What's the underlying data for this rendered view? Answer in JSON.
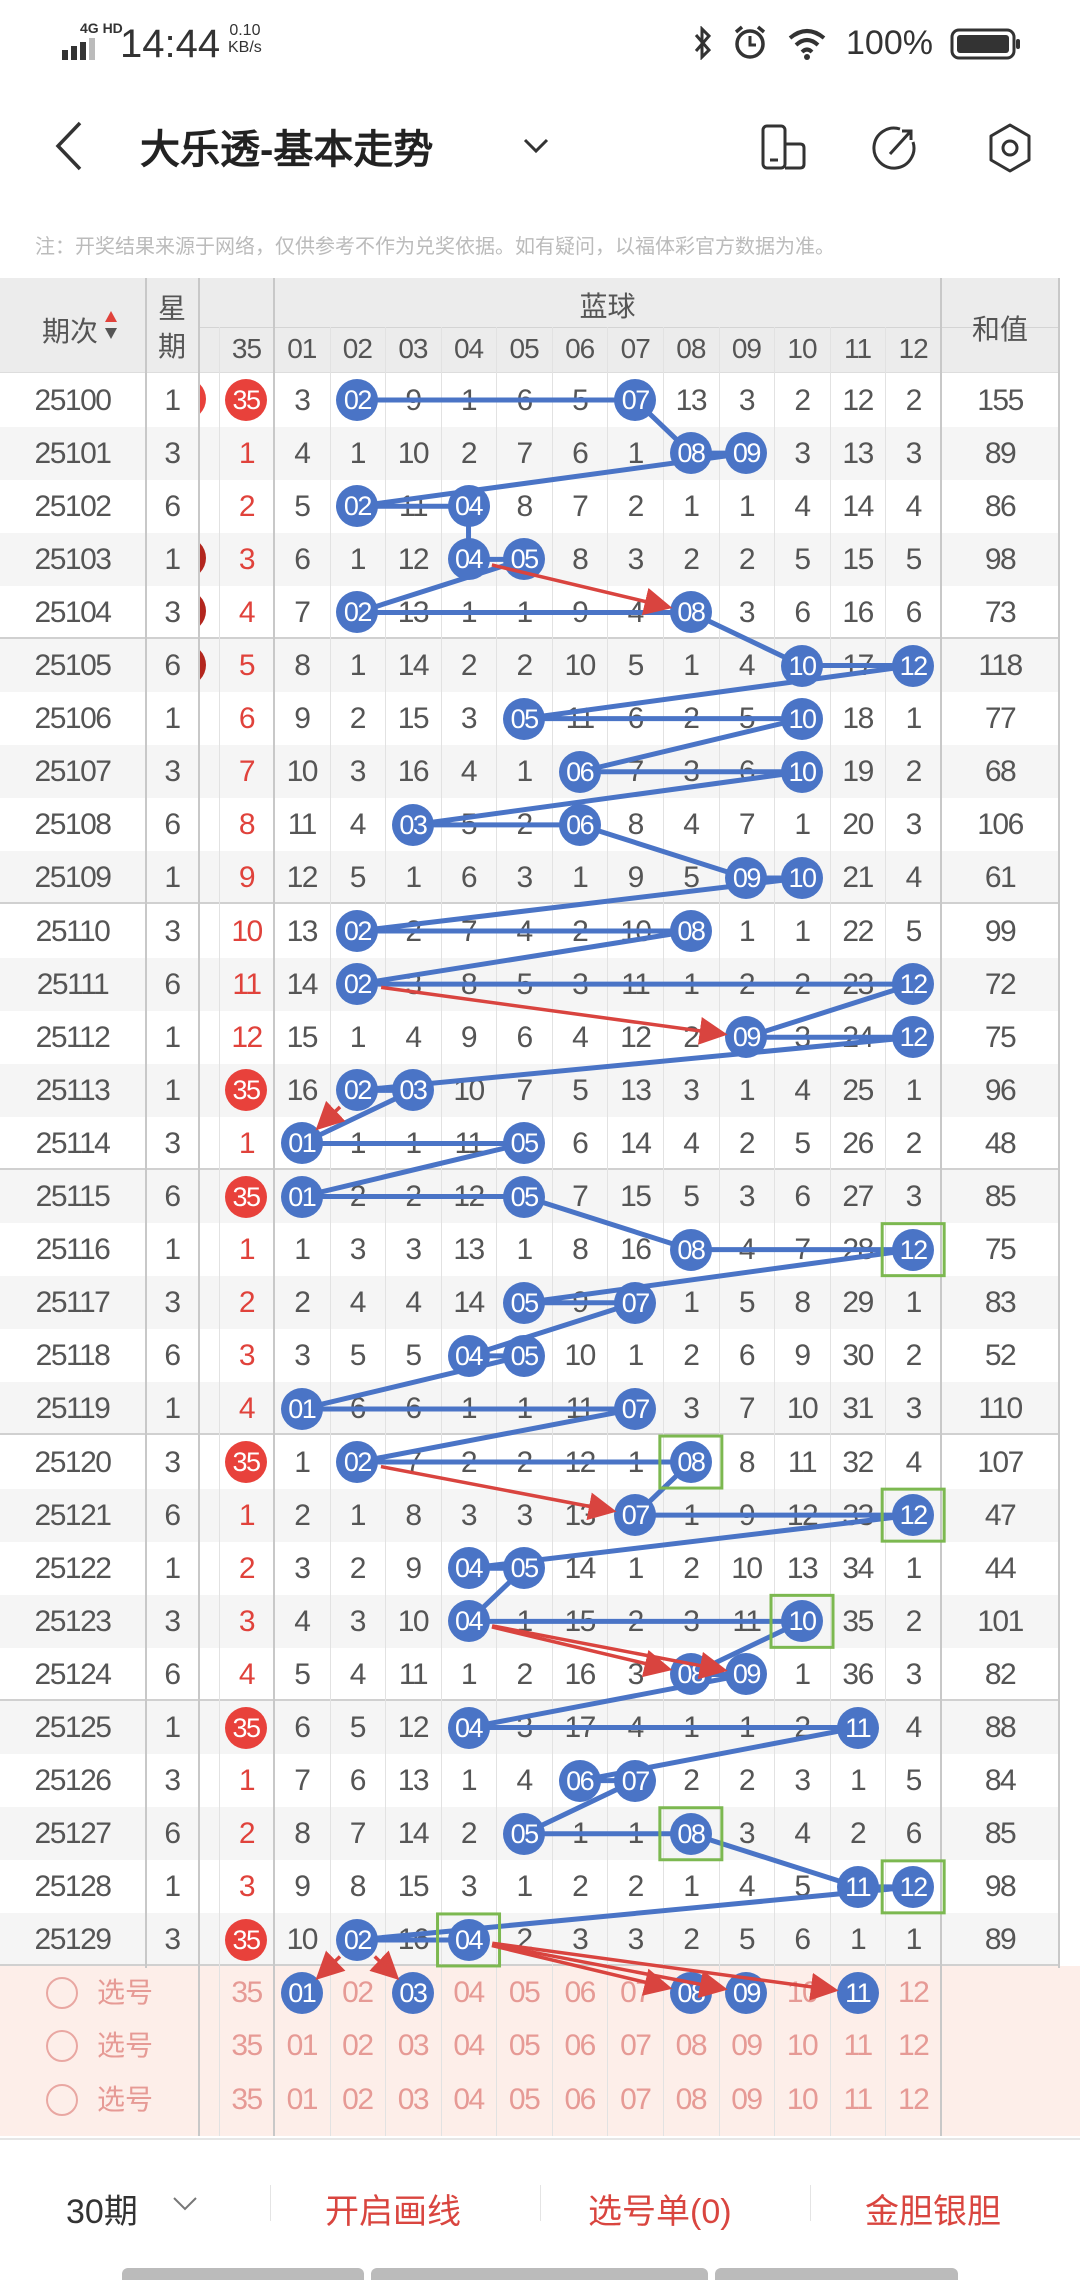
{
  "status_bar": {
    "network": "4G HD",
    "time": "14:44",
    "speed_value": "0.10",
    "speed_unit": "KB/s",
    "battery": "100%"
  },
  "header": {
    "title": "大乐透-基本走势",
    "notice": "注：开奖结果来源于网络，仅供参考不作为兑奖依据。如有疑问，以福体彩官方数据为准。"
  },
  "table_header": {
    "period": "期次",
    "weekday": "星期",
    "blue_group": "蓝球",
    "sum": "和值",
    "front_col": "35",
    "blue_cols": [
      "01",
      "02",
      "03",
      "04",
      "05",
      "06",
      "07",
      "08",
      "09",
      "10",
      "11",
      "12"
    ]
  },
  "colors": {
    "blue_ball": "#4a74c6",
    "red_ball": "#e8413b",
    "accent": "#d9453f",
    "box": "#7cb850"
  },
  "rows": [
    {
      "period": "25100",
      "weekday": "1",
      "c35": "35",
      "c35_hit": true,
      "blue": [
        "3",
        "02",
        "9",
        "1",
        "6",
        "5",
        "07",
        "13",
        "3",
        "2",
        "12",
        "2"
      ],
      "hit": [
        2,
        7
      ],
      "sum": "155"
    },
    {
      "period": "25101",
      "weekday": "3",
      "c35": "1",
      "blue": [
        "4",
        "1",
        "10",
        "2",
        "7",
        "6",
        "1",
        "08",
        "09",
        "3",
        "13",
        "3"
      ],
      "hit": [
        8,
        9
      ],
      "sum": "89"
    },
    {
      "period": "25102",
      "weekday": "6",
      "c35": "2",
      "blue": [
        "5",
        "02",
        "11",
        "04",
        "8",
        "7",
        "2",
        "1",
        "1",
        "4",
        "14",
        "4"
      ],
      "hit": [
        2,
        4
      ],
      "sum": "86"
    },
    {
      "period": "25103",
      "weekday": "1",
      "c35": "3",
      "blue": [
        "6",
        "1",
        "12",
        "04",
        "05",
        "8",
        "3",
        "2",
        "2",
        "5",
        "15",
        "5"
      ],
      "hit": [
        4,
        5
      ],
      "sum": "98"
    },
    {
      "period": "25104",
      "weekday": "3",
      "c35": "4",
      "blue": [
        "7",
        "02",
        "13",
        "1",
        "1",
        "9",
        "4",
        "08",
        "3",
        "6",
        "16",
        "6"
      ],
      "hit": [
        2,
        8
      ],
      "sum": "73"
    },
    {
      "period": "25105",
      "weekday": "6",
      "c35": "5",
      "blue": [
        "8",
        "1",
        "14",
        "2",
        "2",
        "10",
        "5",
        "1",
        "4",
        "10",
        "17",
        "12"
      ],
      "hit": [
        10,
        12
      ],
      "sum": "118"
    },
    {
      "period": "25106",
      "weekday": "1",
      "c35": "6",
      "blue": [
        "9",
        "2",
        "15",
        "3",
        "05",
        "11",
        "6",
        "2",
        "5",
        "10",
        "18",
        "1"
      ],
      "hit": [
        5,
        10
      ],
      "sum": "77"
    },
    {
      "period": "25107",
      "weekday": "3",
      "c35": "7",
      "blue": [
        "10",
        "3",
        "16",
        "4",
        "1",
        "06",
        "7",
        "3",
        "6",
        "10",
        "19",
        "2"
      ],
      "hit": [
        6,
        10
      ],
      "sum": "68"
    },
    {
      "period": "25108",
      "weekday": "6",
      "c35": "8",
      "blue": [
        "11",
        "4",
        "03",
        "5",
        "2",
        "06",
        "8",
        "4",
        "7",
        "1",
        "20",
        "3"
      ],
      "hit": [
        3,
        6
      ],
      "sum": "106"
    },
    {
      "period": "25109",
      "weekday": "1",
      "c35": "9",
      "blue": [
        "12",
        "5",
        "1",
        "6",
        "3",
        "1",
        "9",
        "5",
        "09",
        "10",
        "21",
        "4"
      ],
      "hit": [
        9,
        10
      ],
      "sum": "61"
    },
    {
      "period": "25110",
      "weekday": "3",
      "c35": "10",
      "blue": [
        "13",
        "02",
        "2",
        "7",
        "4",
        "2",
        "10",
        "08",
        "1",
        "1",
        "22",
        "5"
      ],
      "hit": [
        2,
        8
      ],
      "sum": "99"
    },
    {
      "period": "25111",
      "weekday": "6",
      "c35": "11",
      "blue": [
        "14",
        "02",
        "3",
        "8",
        "5",
        "3",
        "11",
        "1",
        "2",
        "2",
        "23",
        "12"
      ],
      "hit": [
        2,
        12
      ],
      "sum": "72"
    },
    {
      "period": "25112",
      "weekday": "1",
      "c35": "12",
      "blue": [
        "15",
        "1",
        "4",
        "9",
        "6",
        "4",
        "12",
        "2",
        "09",
        "3",
        "24",
        "12"
      ],
      "hit": [
        9,
        12
      ],
      "sum": "75"
    },
    {
      "period": "25113",
      "weekday": "1",
      "c35": "35",
      "c35_hit": true,
      "blue": [
        "16",
        "02",
        "03",
        "10",
        "7",
        "5",
        "13",
        "3",
        "1",
        "4",
        "25",
        "1"
      ],
      "hit": [
        2,
        3
      ],
      "sum": "96"
    },
    {
      "period": "25114",
      "weekday": "3",
      "c35": "1",
      "blue": [
        "01",
        "1",
        "1",
        "11",
        "05",
        "6",
        "14",
        "4",
        "2",
        "5",
        "26",
        "2"
      ],
      "hit": [
        1,
        5
      ],
      "sum": "48"
    },
    {
      "period": "25115",
      "weekday": "6",
      "c35": "35",
      "c35_hit": true,
      "blue": [
        "01",
        "2",
        "2",
        "12",
        "05",
        "7",
        "15",
        "5",
        "3",
        "6",
        "27",
        "3"
      ],
      "hit": [
        1,
        5
      ],
      "sum": "85"
    },
    {
      "period": "25116",
      "weekday": "1",
      "c35": "1",
      "blue": [
        "1",
        "3",
        "3",
        "13",
        "1",
        "8",
        "16",
        "08",
        "4",
        "7",
        "28",
        "12"
      ],
      "hit": [
        8,
        12
      ],
      "sum": "75"
    },
    {
      "period": "25117",
      "weekday": "3",
      "c35": "2",
      "blue": [
        "2",
        "4",
        "4",
        "14",
        "05",
        "9",
        "07",
        "1",
        "5",
        "8",
        "29",
        "1"
      ],
      "hit": [
        5,
        7
      ],
      "sum": "83"
    },
    {
      "period": "25118",
      "weekday": "6",
      "c35": "3",
      "blue": [
        "3",
        "5",
        "5",
        "04",
        "05",
        "10",
        "1",
        "2",
        "6",
        "9",
        "30",
        "2"
      ],
      "hit": [
        4,
        5
      ],
      "sum": "52"
    },
    {
      "period": "25119",
      "weekday": "1",
      "c35": "4",
      "blue": [
        "01",
        "6",
        "6",
        "1",
        "1",
        "11",
        "07",
        "3",
        "7",
        "10",
        "31",
        "3"
      ],
      "hit": [
        1,
        7
      ],
      "sum": "110"
    },
    {
      "period": "25120",
      "weekday": "3",
      "c35": "35",
      "c35_hit": true,
      "blue": [
        "1",
        "02",
        "7",
        "2",
        "2",
        "12",
        "1",
        "08",
        "8",
        "11",
        "32",
        "4"
      ],
      "hit": [
        2,
        8
      ],
      "sum": "107"
    },
    {
      "period": "25121",
      "weekday": "6",
      "c35": "1",
      "blue": [
        "2",
        "1",
        "8",
        "3",
        "3",
        "13",
        "07",
        "1",
        "9",
        "12",
        "33",
        "12"
      ],
      "hit": [
        7,
        12
      ],
      "sum": "47"
    },
    {
      "period": "25122",
      "weekday": "1",
      "c35": "2",
      "blue": [
        "3",
        "2",
        "9",
        "04",
        "05",
        "14",
        "1",
        "2",
        "10",
        "13",
        "34",
        "1"
      ],
      "hit": [
        4,
        5
      ],
      "sum": "44"
    },
    {
      "period": "25123",
      "weekday": "3",
      "c35": "3",
      "blue": [
        "4",
        "3",
        "10",
        "04",
        "1",
        "15",
        "2",
        "3",
        "11",
        "10",
        "35",
        "2"
      ],
      "hit": [
        4,
        10
      ],
      "sum": "101"
    },
    {
      "period": "25124",
      "weekday": "6",
      "c35": "4",
      "blue": [
        "5",
        "4",
        "11",
        "1",
        "2",
        "16",
        "3",
        "08",
        "09",
        "1",
        "36",
        "3"
      ],
      "hit": [
        8,
        9
      ],
      "sum": "82"
    },
    {
      "period": "25125",
      "weekday": "1",
      "c35": "35",
      "c35_hit": true,
      "blue": [
        "6",
        "5",
        "12",
        "04",
        "3",
        "17",
        "4",
        "1",
        "1",
        "2",
        "11",
        "4"
      ],
      "hit": [
        4,
        11
      ],
      "sum": "88"
    },
    {
      "period": "25126",
      "weekday": "3",
      "c35": "1",
      "blue": [
        "7",
        "6",
        "13",
        "1",
        "4",
        "06",
        "07",
        "2",
        "2",
        "3",
        "1",
        "5"
      ],
      "hit": [
        6,
        7
      ],
      "sum": "84"
    },
    {
      "period": "25127",
      "weekday": "6",
      "c35": "2",
      "blue": [
        "8",
        "7",
        "14",
        "2",
        "05",
        "1",
        "1",
        "08",
        "3",
        "4",
        "2",
        "6"
      ],
      "hit": [
        5,
        8
      ],
      "sum": "85"
    },
    {
      "period": "25128",
      "weekday": "1",
      "c35": "3",
      "blue": [
        "9",
        "8",
        "15",
        "3",
        "1",
        "2",
        "2",
        "1",
        "4",
        "5",
        "11",
        "12"
      ],
      "hit": [
        11,
        12
      ],
      "sum": "98"
    },
    {
      "period": "25129",
      "weekday": "3",
      "c35": "35",
      "c35_hit": true,
      "blue": [
        "10",
        "02",
        "16",
        "04",
        "2",
        "3",
        "3",
        "2",
        "5",
        "6",
        "1",
        "1"
      ],
      "hit": [
        2,
        4
      ],
      "sum": "89"
    }
  ],
  "select_rows": [
    {
      "label": "选号",
      "c35": "35",
      "blue": [
        "01",
        "02",
        "03",
        "04",
        "05",
        "06",
        "07",
        "08",
        "09",
        "10",
        "11",
        "12"
      ],
      "selected": [
        1,
        3,
        8,
        9,
        11
      ]
    },
    {
      "label": "选号",
      "c35": "35",
      "blue": [
        "01",
        "02",
        "03",
        "04",
        "05",
        "06",
        "07",
        "08",
        "09",
        "10",
        "11",
        "12"
      ],
      "selected": []
    },
    {
      "label": "选号",
      "c35": "35",
      "blue": [
        "01",
        "02",
        "03",
        "04",
        "05",
        "06",
        "07",
        "08",
        "09",
        "10",
        "11",
        "12"
      ],
      "selected": []
    }
  ],
  "highlight_boxes": [
    [
      "25116",
      12
    ],
    [
      "25120",
      8
    ],
    [
      "25121",
      12
    ],
    [
      "25123",
      10
    ],
    [
      "25127",
      8
    ],
    [
      "25128",
      12
    ],
    [
      "25129",
      4
    ]
  ],
  "arrows": [
    {
      "from": [
        "25103",
        4
      ],
      "to": [
        "25104",
        8
      ]
    },
    {
      "from": [
        "25111",
        2
      ],
      "to": [
        "25112",
        9
      ]
    },
    {
      "from": [
        "25113",
        2
      ],
      "to": [
        "25114",
        1
      ]
    },
    {
      "from": [
        "25120",
        2
      ],
      "to": [
        "25121",
        7
      ]
    },
    {
      "from": [
        "25123",
        4
      ],
      "to": [
        "25124",
        8
      ]
    },
    {
      "from": [
        "25123",
        4
      ],
      "to": [
        "25124",
        9
      ]
    },
    {
      "from": [
        "25129",
        2
      ],
      "to": [
        "select",
        1
      ]
    },
    {
      "from": [
        "25129",
        2
      ],
      "to": [
        "select",
        3
      ]
    },
    {
      "from": [
        "25129",
        4
      ],
      "to": [
        "select",
        8
      ]
    },
    {
      "from": [
        "25129",
        4
      ],
      "to": [
        "select",
        9
      ]
    },
    {
      "from": [
        "25129",
        4
      ],
      "to": [
        "select",
        11
      ]
    }
  ],
  "bottom_bar": {
    "periods": "30期",
    "draw_lines": "开启画线",
    "pick_list": "选号单(0)",
    "gold_silver": "金胆银胆"
  }
}
